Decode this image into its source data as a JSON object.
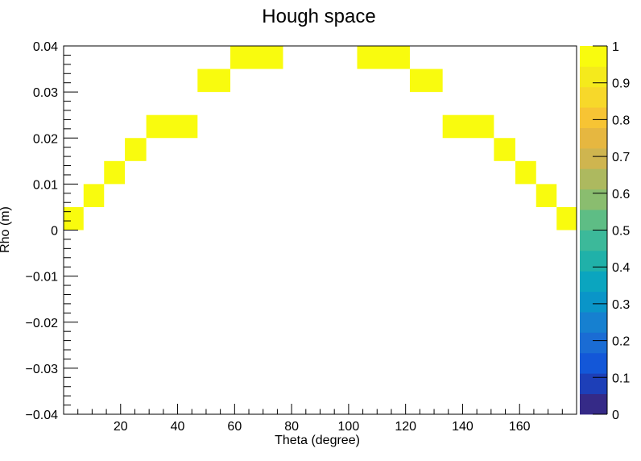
{
  "chart_data": {
    "type": "heatmap",
    "title": "Hough space",
    "xlabel": "Theta (degree)",
    "ylabel": "Rho (m)",
    "xlim": [
      0,
      180
    ],
    "ylim": [
      -0.04,
      0.04
    ],
    "x_ticks": [
      20,
      40,
      60,
      80,
      100,
      120,
      140,
      160
    ],
    "y_ticks": [
      -0.04,
      -0.03,
      -0.02,
      -0.01,
      0,
      0.01,
      0.02,
      0.03,
      0.04
    ],
    "y_tick_labels": [
      "−0.04",
      "−0.03",
      "−0.02",
      "−0.01",
      "0",
      "0.01",
      "0.02",
      "0.03",
      "0.04"
    ],
    "colorbar": {
      "range": [
        0,
        1
      ],
      "ticks": [
        0,
        0.1,
        0.2,
        0.3,
        0.4,
        0.5,
        0.6,
        0.7,
        0.8,
        0.9,
        1
      ],
      "tick_labels": [
        "0",
        "0.1",
        "0.2",
        "0.3",
        "0.4",
        "0.5",
        "0.6",
        "0.7",
        "0.8",
        "0.9",
        "1"
      ],
      "colors": [
        "#352a87",
        "#1d3fb8",
        "#1357d8",
        "#1a6cd4",
        "#1680d0",
        "#0a95c8",
        "#0ba5bf",
        "#20b1a9",
        "#3cb99a",
        "#5ebd85",
        "#8abd6f",
        "#adb95f",
        "#cfb54f",
        "#e6b740",
        "#f7c434",
        "#f7d82a",
        "#f5ea1c",
        "#f9fb0e"
      ]
    },
    "cells": [
      {
        "theta": [
          0,
          7
        ],
        "rho": [
          0,
          0.005
        ],
        "value": 1
      },
      {
        "theta": [
          7,
          14.2
        ],
        "rho": [
          0.005,
          0.01
        ],
        "value": 1
      },
      {
        "theta": [
          14.2,
          21.5
        ],
        "rho": [
          0.01,
          0.015
        ],
        "value": 1
      },
      {
        "theta": [
          21.5,
          29
        ],
        "rho": [
          0.015,
          0.02
        ],
        "value": 1
      },
      {
        "theta": [
          29,
          47
        ],
        "rho": [
          0.02,
          0.025
        ],
        "value": 1
      },
      {
        "theta": [
          47,
          58.5
        ],
        "rho": [
          0.03,
          0.035
        ],
        "value": 1
      },
      {
        "theta": [
          58.5,
          77
        ],
        "rho": [
          0.035,
          0.04
        ],
        "value": 1
      },
      {
        "theta": [
          103,
          121.5
        ],
        "rho": [
          0.035,
          0.04
        ],
        "value": 1
      },
      {
        "theta": [
          121.5,
          133
        ],
        "rho": [
          0.03,
          0.035
        ],
        "value": 1
      },
      {
        "theta": [
          133,
          151
        ],
        "rho": [
          0.02,
          0.025
        ],
        "value": 1
      },
      {
        "theta": [
          151,
          158.5
        ],
        "rho": [
          0.015,
          0.02
        ],
        "value": 1
      },
      {
        "theta": [
          158.5,
          165.8
        ],
        "rho": [
          0.01,
          0.015
        ],
        "value": 1
      },
      {
        "theta": [
          165.8,
          173
        ],
        "rho": [
          0.005,
          0.01
        ],
        "value": 1
      },
      {
        "theta": [
          173,
          180
        ],
        "rho": [
          0,
          0.005
        ],
        "value": 1
      }
    ]
  }
}
